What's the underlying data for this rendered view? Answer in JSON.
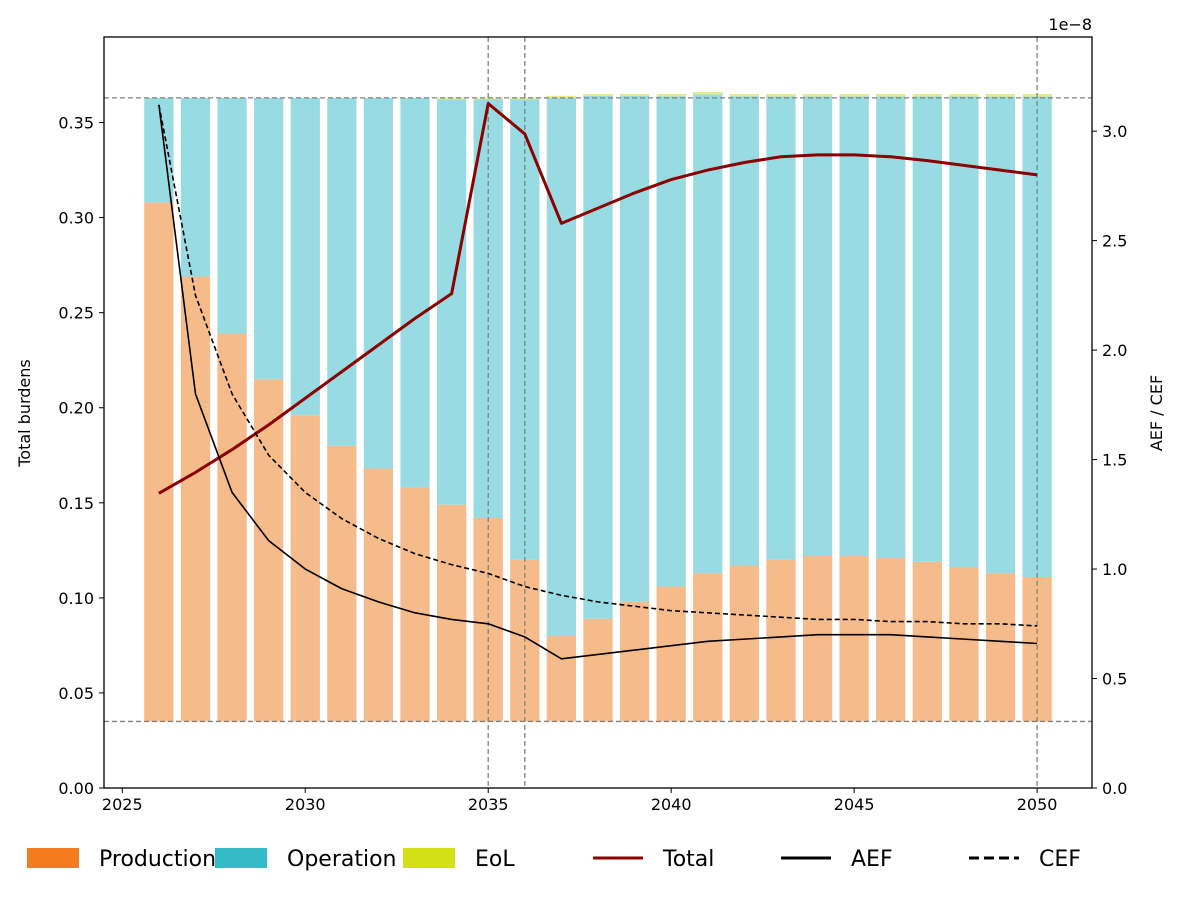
{
  "chart_data": {
    "type": "bar",
    "title": "",
    "stacked": true,
    "x": [
      2026,
      2027,
      2028,
      2029,
      2030,
      2031,
      2032,
      2033,
      2034,
      2035,
      2036,
      2037,
      2038,
      2039,
      2040,
      2041,
      2042,
      2043,
      2044,
      2045,
      2046,
      2047,
      2048,
      2049,
      2050
    ],
    "base": 0.035,
    "bar_series": [
      {
        "name": "Production",
        "color": "#f47b20",
        "values": [
          0.273,
          0.234,
          0.204,
          0.18,
          0.161,
          0.145,
          0.133,
          0.123,
          0.114,
          0.107,
          0.085,
          0.045,
          0.054,
          0.063,
          0.071,
          0.078,
          0.082,
          0.085,
          0.087,
          0.087,
          0.086,
          0.084,
          0.081,
          0.078,
          0.076
        ]
      },
      {
        "name": "Operation",
        "color": "#33bbc9",
        "values": [
          0.055,
          0.094,
          0.124,
          0.148,
          0.167,
          0.183,
          0.195,
          0.205,
          0.214,
          0.221,
          0.243,
          0.284,
          0.276,
          0.267,
          0.259,
          0.253,
          0.248,
          0.245,
          0.243,
          0.243,
          0.244,
          0.246,
          0.249,
          0.252,
          0.254
        ]
      },
      {
        "name": "EoL",
        "color": "#d2e015",
        "values": [
          0,
          0,
          0,
          0,
          0,
          0,
          0,
          0,
          -0.0005,
          -0.0007,
          -0.0008,
          -0.001,
          -0.001,
          -0.001,
          -0.0012,
          -0.0012,
          -0.0012,
          -0.0013,
          -0.0013,
          -0.0013,
          -0.0013,
          -0.0013,
          -0.0013,
          -0.0014,
          -0.0014
        ]
      }
    ],
    "line_series": [
      {
        "name": "Total",
        "axis": "left",
        "color": "#8b0000",
        "width": 3,
        "style": "solid",
        "values": [
          0.155,
          0.166,
          0.178,
          0.191,
          0.205,
          0.219,
          0.233,
          0.247,
          0.26,
          0.36,
          0.344,
          0.297,
          0.305,
          0.313,
          0.32,
          0.325,
          0.329,
          0.332,
          0.333,
          0.333,
          0.332,
          0.33,
          0.3275,
          0.325,
          0.3225
        ]
      },
      {
        "name": "AEF",
        "axis": "right",
        "color": "#000000",
        "width": 1.6,
        "style": "solid",
        "values": [
          3.12e-08,
          1.8e-08,
          1.35e-08,
          1.13e-08,
          1e-08,
          9.1e-09,
          8.5e-09,
          8e-09,
          7.7e-09,
          7.5e-09,
          6.9e-09,
          5.9e-09,
          6.1e-09,
          6.3e-09,
          6.5e-09,
          6.7e-09,
          6.8e-09,
          6.9e-09,
          7e-09,
          7e-09,
          7e-09,
          6.9e-09,
          6.8e-09,
          6.7e-09,
          6.6e-09
        ]
      },
      {
        "name": "CEF",
        "axis": "right",
        "color": "#000000",
        "width": 1.6,
        "style": "dashed",
        "values": [
          3.12e-08,
          2.25e-08,
          1.8e-08,
          1.52e-08,
          1.35e-08,
          1.23e-08,
          1.14e-08,
          1.07e-08,
          1.02e-08,
          9.8e-09,
          9.2e-09,
          8.8e-09,
          8.5e-09,
          8.3e-09,
          8.1e-09,
          8e-09,
          7.9e-09,
          7.8e-09,
          7.7e-09,
          7.7e-09,
          7.6e-09,
          7.6e-09,
          7.5e-09,
          7.5e-09,
          7.4e-09
        ]
      }
    ],
    "xlim": [
      2024.5,
      2051.5
    ],
    "ylim_left": [
      0,
      0.395
    ],
    "ylim_right": [
      0,
      3.43e-08
    ],
    "xticks": [
      2025,
      2030,
      2035,
      2040,
      2045,
      2050
    ],
    "xtick_labels": [
      "2025",
      "2030",
      "2035",
      "2040",
      "2045",
      "2050"
    ],
    "yticks_left": [
      0,
      0.05,
      0.1,
      0.15,
      0.2,
      0.25,
      0.3,
      0.35
    ],
    "ytick_labels_left": [
      "0.00",
      "0.05",
      "0.10",
      "0.15",
      "0.20",
      "0.25",
      "0.30",
      "0.35"
    ],
    "yticks_right": [
      0,
      5e-09,
      1e-08,
      1.5e-08,
      2e-08,
      2.5e-08,
      3e-08
    ],
    "ytick_labels_right": [
      "0.0",
      "0.5",
      "1.0",
      "1.5",
      "2.0",
      "2.5",
      "3.0"
    ],
    "right_axis_offset_label": "1e−8",
    "xlabel": "",
    "ylabel_left": "Total burdens",
    "ylabel_right": "AEF / CEF",
    "reference_lines": {
      "vertical_x": [
        2035,
        2036,
        2050
      ],
      "horizontal_y": [
        0.363,
        0.035
      ],
      "color": "#808080",
      "style": "dashed"
    },
    "grid": false,
    "legend": {
      "placement": "bottom",
      "entries": [
        {
          "label": "Production",
          "kind": "patch",
          "color": "#f47b20"
        },
        {
          "label": "Operation",
          "kind": "patch",
          "color": "#33bbc9"
        },
        {
          "label": "EoL",
          "kind": "patch",
          "color": "#d2e015"
        },
        {
          "label": "Total",
          "kind": "line",
          "color": "#8b0000",
          "style": "solid"
        },
        {
          "label": "AEF",
          "kind": "line",
          "color": "#000000",
          "style": "solid"
        },
        {
          "label": "CEF",
          "kind": "line",
          "color": "#000000",
          "style": "dashed"
        }
      ]
    }
  }
}
